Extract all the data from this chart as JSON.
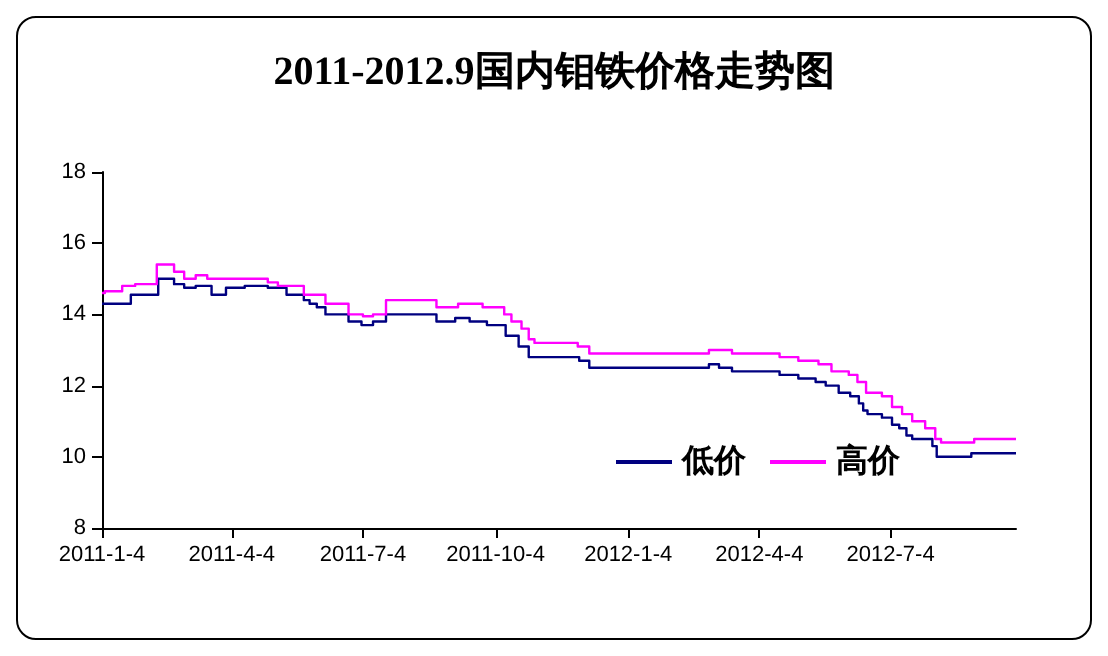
{
  "chart_data": {
    "type": "step",
    "title": "2011-2012.9国内钼铁价格走势图",
    "xlim": [
      "2011-01-04",
      "2012-09-29"
    ],
    "xticks": [
      {
        "value": "2011-01-04",
        "label": "2011-1-4"
      },
      {
        "value": "2011-04-04",
        "label": "2011-4-4"
      },
      {
        "value": "2011-07-04",
        "label": "2011-7-4"
      },
      {
        "value": "2011-10-04",
        "label": "2011-10-4"
      },
      {
        "value": "2012-01-04",
        "label": "2012-1-4"
      },
      {
        "value": "2012-04-04",
        "label": "2012-4-4"
      },
      {
        "value": "2012-07-04",
        "label": "2012-7-4"
      }
    ],
    "ylim": [
      8,
      18
    ],
    "yticks": [
      8,
      10,
      12,
      14,
      16,
      18
    ],
    "grid": false,
    "legend": "bottom right",
    "marker": "none",
    "line_style": "solid",
    "series": [
      {
        "name": "低价",
        "color": "#000080",
        "x": [
          "2011-01-04",
          "2011-01-24",
          "2011-02-12",
          "2011-02-23",
          "2011-03-02",
          "2011-03-10",
          "2011-03-21",
          "2011-03-31",
          "2011-04-13",
          "2011-04-29",
          "2011-05-12",
          "2011-05-24",
          "2011-05-28",
          "2011-06-02",
          "2011-06-08",
          "2011-06-24",
          "2011-07-03",
          "2011-07-11",
          "2011-07-20",
          "2011-08-24",
          "2011-09-06",
          "2011-09-16",
          "2011-09-28",
          "2011-10-11",
          "2011-10-20",
          "2011-10-27",
          "2011-12-01",
          "2011-12-08",
          "2012-02-29",
          "2012-03-07",
          "2012-03-16",
          "2012-04-18",
          "2012-05-01",
          "2012-05-13",
          "2012-05-20",
          "2012-05-29",
          "2012-06-06",
          "2012-06-12",
          "2012-06-15",
          "2012-06-18",
          "2012-06-28",
          "2012-07-05",
          "2012-07-10",
          "2012-07-15",
          "2012-07-19",
          "2012-08-02",
          "2012-08-05",
          "2012-08-29",
          "2012-09-29"
        ],
        "values": [
          14.3,
          14.55,
          15.0,
          14.85,
          14.75,
          14.8,
          14.55,
          14.75,
          14.8,
          14.75,
          14.55,
          14.4,
          14.3,
          14.2,
          14.0,
          13.8,
          13.7,
          13.8,
          14.0,
          13.8,
          13.9,
          13.8,
          13.7,
          13.4,
          13.1,
          12.8,
          12.7,
          12.5,
          12.6,
          12.5,
          12.4,
          12.3,
          12.2,
          12.1,
          12.0,
          11.8,
          11.7,
          11.5,
          11.3,
          11.2,
          11.1,
          10.9,
          10.8,
          10.6,
          10.5,
          10.3,
          10.0,
          10.1,
          10.1
        ]
      },
      {
        "name": "高价",
        "color": "#ff00ff",
        "x": [
          "2011-01-04",
          "2011-01-06",
          "2011-01-18",
          "2011-01-27",
          "2011-02-11",
          "2011-02-23",
          "2011-03-02",
          "2011-03-10",
          "2011-03-18",
          "2011-04-29",
          "2011-05-06",
          "2011-05-24",
          "2011-06-08",
          "2011-06-24",
          "2011-07-04",
          "2011-07-11",
          "2011-07-20",
          "2011-08-24",
          "2011-09-08",
          "2011-09-25",
          "2011-10-10",
          "2011-10-15",
          "2011-10-22",
          "2011-10-27",
          "2011-10-31",
          "2011-11-30",
          "2011-12-08",
          "2012-02-29",
          "2012-03-16",
          "2012-04-18",
          "2012-05-01",
          "2012-05-15",
          "2012-05-24",
          "2012-06-05",
          "2012-06-11",
          "2012-06-17",
          "2012-06-28",
          "2012-07-05",
          "2012-07-12",
          "2012-07-19",
          "2012-07-28",
          "2012-08-04",
          "2012-08-08",
          "2012-08-31",
          "2012-09-29"
        ],
        "values": [
          14.6,
          14.65,
          14.8,
          14.85,
          15.4,
          15.2,
          15.0,
          15.1,
          15.0,
          14.9,
          14.8,
          14.55,
          14.3,
          14.0,
          13.95,
          14.0,
          14.4,
          14.2,
          14.3,
          14.2,
          14.0,
          13.8,
          13.6,
          13.3,
          13.2,
          13.1,
          12.9,
          13.0,
          12.9,
          12.8,
          12.7,
          12.6,
          12.4,
          12.3,
          12.1,
          11.8,
          11.7,
          11.4,
          11.2,
          11.0,
          10.8,
          10.5,
          10.4,
          10.5,
          10.5
        ]
      }
    ]
  }
}
